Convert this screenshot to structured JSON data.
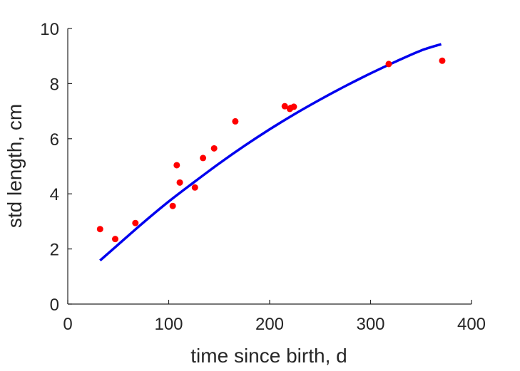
{
  "chart_data": {
    "type": "scatter",
    "title": "",
    "xlabel": "time since birth, d",
    "ylabel": "std length, cm",
    "xlim": [
      0,
      400
    ],
    "ylim": [
      0,
      10
    ],
    "xticks": [
      0,
      100,
      200,
      300,
      400
    ],
    "yticks": [
      0,
      2,
      4,
      6,
      8,
      10
    ],
    "grid": false,
    "legend": "none",
    "series": [
      {
        "kind": "points",
        "color": "#ff0000",
        "x": [
          32,
          47,
          67,
          104,
          108,
          111,
          126,
          134,
          145,
          166,
          215,
          220,
          221,
          224,
          318,
          371
        ],
        "y": [
          2.72,
          2.36,
          2.94,
          3.56,
          5.04,
          4.41,
          4.23,
          5.3,
          5.65,
          6.63,
          7.18,
          7.08,
          7.12,
          7.16,
          8.71,
          8.83
        ]
      },
      {
        "kind": "curve",
        "color": "#0000ee",
        "x": [
          32,
          50,
          75,
          100,
          125,
          150,
          175,
          200,
          225,
          250,
          275,
          300,
          325,
          350,
          370
        ],
        "y": [
          1.58,
          2.16,
          2.96,
          3.72,
          4.42,
          5.1,
          5.74,
          6.34,
          6.9,
          7.42,
          7.91,
          8.37,
          8.8,
          9.2,
          9.43
        ]
      }
    ]
  }
}
